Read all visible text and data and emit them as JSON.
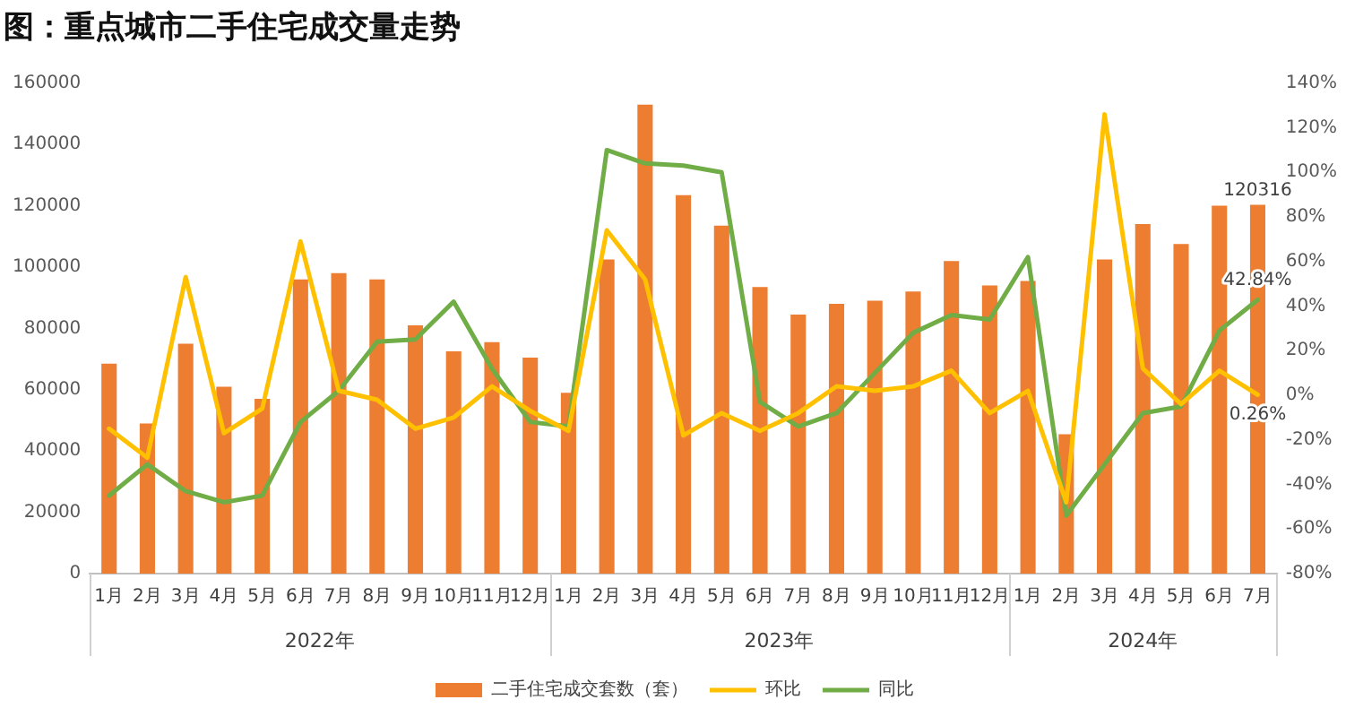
{
  "chart_data": {
    "type": "bar",
    "title": "图：重点城市二手住宅成交量走势",
    "categories": [
      "1月",
      "2月",
      "3月",
      "4月",
      "5月",
      "6月",
      "7月",
      "8月",
      "9月",
      "10月",
      "11月",
      "12月",
      "1月",
      "2月",
      "3月",
      "4月",
      "5月",
      "6月",
      "7月",
      "8月",
      "9月",
      "10月",
      "11月",
      "12月",
      "1月",
      "2月",
      "3月",
      "4月",
      "5月",
      "6月",
      "7月"
    ],
    "series": [
      {
        "name": "二手住宅成交套数（套）",
        "color": "#ed7d31",
        "values": [
          68500,
          49000,
          75000,
          61000,
          57000,
          96000,
          98000,
          96000,
          81000,
          72500,
          75500,
          70500,
          59000,
          102500,
          153000,
          123500,
          113500,
          93500,
          84500,
          88000,
          89000,
          92000,
          102000,
          94000,
          95500,
          45500,
          102500,
          114000,
          107500,
          120000,
          120316
        ],
        "value_labels": [
          null,
          null,
          null,
          null,
          null,
          null,
          null,
          null,
          null,
          null,
          null,
          null,
          null,
          null,
          null,
          null,
          null,
          null,
          null,
          null,
          null,
          null,
          null,
          null,
          null,
          null,
          null,
          null,
          null,
          null,
          "120316"
        ]
      },
      {
        "name": "环比",
        "type": "line",
        "axis": "y2",
        "color": "#ffc000",
        "values": [
          -15,
          -28,
          53,
          -17,
          -6,
          69,
          2,
          -2,
          -15,
          -10,
          4,
          -7,
          -16,
          74,
          52,
          -18,
          -8,
          -16,
          -8,
          4,
          2,
          4,
          11,
          -8,
          2,
          -48,
          126,
          12,
          -4,
          11,
          0.26
        ],
        "value_labels": [
          null,
          null,
          null,
          null,
          null,
          null,
          null,
          null,
          null,
          null,
          null,
          null,
          null,
          null,
          null,
          null,
          null,
          null,
          null,
          null,
          null,
          null,
          null,
          null,
          null,
          null,
          null,
          null,
          null,
          null,
          "0.26%"
        ]
      },
      {
        "name": "同比",
        "type": "line",
        "axis": "y2",
        "color": "#70ad47",
        "values": [
          -45,
          -31,
          -43,
          -48,
          -45,
          -12,
          2,
          24,
          25,
          42,
          12,
          -12,
          -14,
          110,
          104,
          103,
          100,
          -3,
          -14,
          -8,
          10,
          28,
          36,
          34,
          62,
          -54,
          -31,
          -8,
          -5,
          29,
          42.84
        ],
        "value_labels": [
          null,
          null,
          null,
          null,
          null,
          null,
          null,
          null,
          null,
          null,
          null,
          null,
          null,
          null,
          null,
          null,
          null,
          null,
          null,
          null,
          null,
          null,
          null,
          null,
          null,
          null,
          null,
          null,
          null,
          null,
          "42.84%"
        ]
      }
    ],
    "ylim": [
      0,
      160000
    ],
    "yticks": [
      0,
      20000,
      40000,
      60000,
      80000,
      100000,
      120000,
      140000,
      160000
    ],
    "y2lim": [
      -80,
      140
    ],
    "y2ticks": [
      {
        "value": -80,
        "label": "-80%"
      },
      {
        "value": -60,
        "label": "-60%"
      },
      {
        "value": -40,
        "label": "-40%"
      },
      {
        "value": -20,
        "label": "-20%"
      },
      {
        "value": 0,
        "label": "0%"
      },
      {
        "value": 20,
        "label": "20%"
      },
      {
        "value": 40,
        "label": "40%"
      },
      {
        "value": 60,
        "label": "60%"
      },
      {
        "value": 80,
        "label": "80%"
      },
      {
        "value": 100,
        "label": "100%"
      },
      {
        "value": 120,
        "label": "120%"
      },
      {
        "value": 140,
        "label": "140%"
      }
    ],
    "annotations": [
      "2022年",
      "2023年",
      "2024年"
    ],
    "legend": "bottom",
    "grid": false
  }
}
